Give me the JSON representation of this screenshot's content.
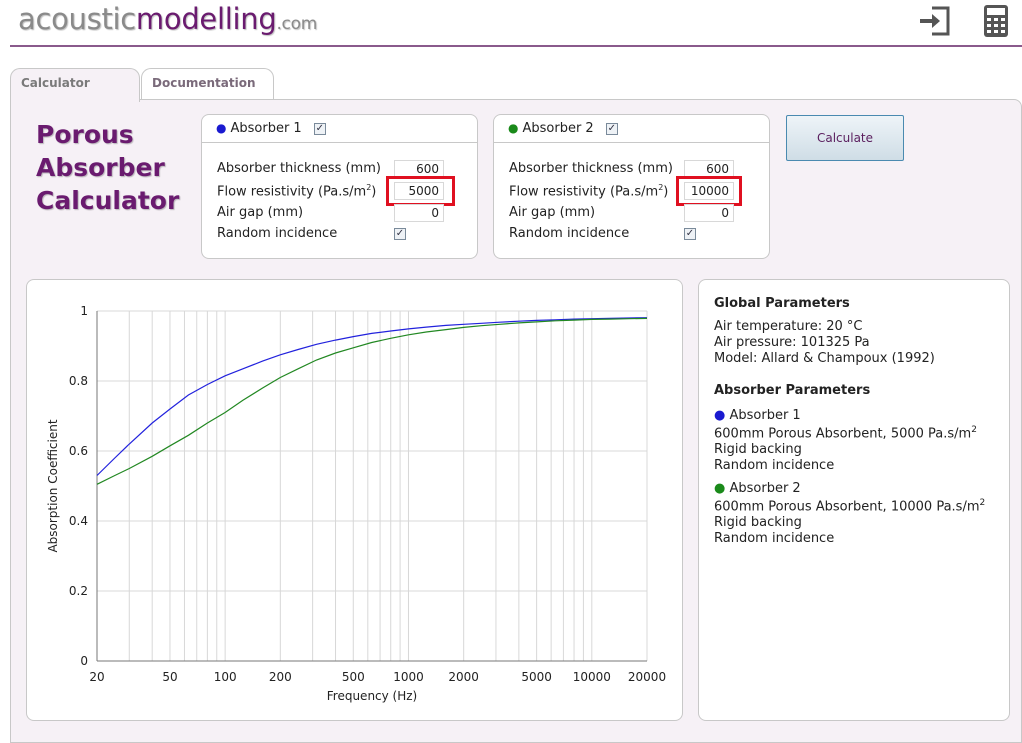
{
  "logo": {
    "part1": "acoustic",
    "part2": "modelling",
    "part3": ".com"
  },
  "header": {
    "login_icon": "sign-in-icon",
    "calculator_icon": "calculator-icon"
  },
  "tabs": [
    {
      "label": "Calculator",
      "active": true
    },
    {
      "label": "Documentation",
      "active": false
    }
  ],
  "title": {
    "line1": "Porous",
    "line2": "Absorber",
    "line3": "Calculator"
  },
  "absorbers": [
    {
      "name": "Absorber 1",
      "color": "#1a1ad0",
      "enabled": true,
      "thickness_label": "Absorber thickness (mm)",
      "thickness": "600",
      "flow_label": "Flow resistivity (Pa.s/m",
      "flow_sup": "2",
      "flow_close": ")",
      "flow": "5000",
      "airgap_label": "Air gap (mm)",
      "airgap": "0",
      "random_label": "Random incidence",
      "random": true
    },
    {
      "name": "Absorber 2",
      "color": "#1a8a1a",
      "enabled": true,
      "thickness_label": "Absorber thickness (mm)",
      "thickness": "600",
      "flow_label": "Flow resistivity (Pa.s/m",
      "flow_sup": "2",
      "flow_close": ")",
      "flow": "10000",
      "airgap_label": "Air gap (mm)",
      "airgap": "0",
      "random_label": "Random incidence",
      "random": true
    }
  ],
  "calculate_label": "Calculate",
  "info": {
    "global_title": "Global Parameters",
    "air_temp": "Air temperature: 20 °C",
    "air_pressure": "Air pressure: 101325 Pa",
    "model": "Model: Allard & Champoux (1992)",
    "absorber_title": "Absorber Parameters",
    "abs1_name": "Absorber 1",
    "abs1_desc": "600mm Porous Absorbent, 5000 Pa.s/m",
    "abs1_sup": "2",
    "abs1_backing": "Rigid backing",
    "abs1_incidence": "Random incidence",
    "abs2_name": "Absorber 2",
    "abs2_desc": "600mm Porous Absorbent, 10000 Pa.s/m",
    "abs2_sup": "2",
    "abs2_backing": "Rigid backing",
    "abs2_incidence": "Random incidence"
  },
  "chart_data": {
    "type": "line",
    "xlabel": "Frequency (Hz)",
    "ylabel": "Absorption Coefficient",
    "xscale": "log",
    "xlim": [
      20,
      20000
    ],
    "ylim": [
      0,
      1
    ],
    "grid": true,
    "x_ticks": [
      "20",
      "50",
      "100",
      "200",
      "500",
      "1000",
      "2000",
      "5000",
      "10000",
      "20000"
    ],
    "y_ticks": [
      "0",
      "0.2",
      "0.4",
      "0.6",
      "0.8",
      "1"
    ],
    "x": [
      20,
      25,
      30,
      40,
      50,
      63,
      80,
      100,
      125,
      160,
      200,
      250,
      315,
      400,
      500,
      630,
      800,
      1000,
      1250,
      1600,
      2000,
      2500,
      3150,
      4000,
      5000,
      6300,
      8000,
      10000,
      12500,
      16000,
      20000
    ],
    "series": [
      {
        "name": "Absorber 1",
        "color": "#2222dd",
        "values": [
          0.53,
          0.58,
          0.62,
          0.68,
          0.72,
          0.76,
          0.79,
          0.815,
          0.835,
          0.857,
          0.875,
          0.89,
          0.905,
          0.917,
          0.927,
          0.936,
          0.943,
          0.949,
          0.954,
          0.959,
          0.962,
          0.965,
          0.968,
          0.971,
          0.973,
          0.975,
          0.977,
          0.978,
          0.979,
          0.98,
          0.981
        ]
      },
      {
        "name": "Absorber 2",
        "color": "#228822",
        "values": [
          0.505,
          0.53,
          0.55,
          0.585,
          0.615,
          0.645,
          0.68,
          0.71,
          0.745,
          0.78,
          0.81,
          0.835,
          0.86,
          0.88,
          0.895,
          0.91,
          0.922,
          0.932,
          0.94,
          0.947,
          0.953,
          0.958,
          0.962,
          0.966,
          0.969,
          0.972,
          0.974,
          0.976,
          0.977,
          0.978,
          0.979
        ]
      }
    ]
  }
}
